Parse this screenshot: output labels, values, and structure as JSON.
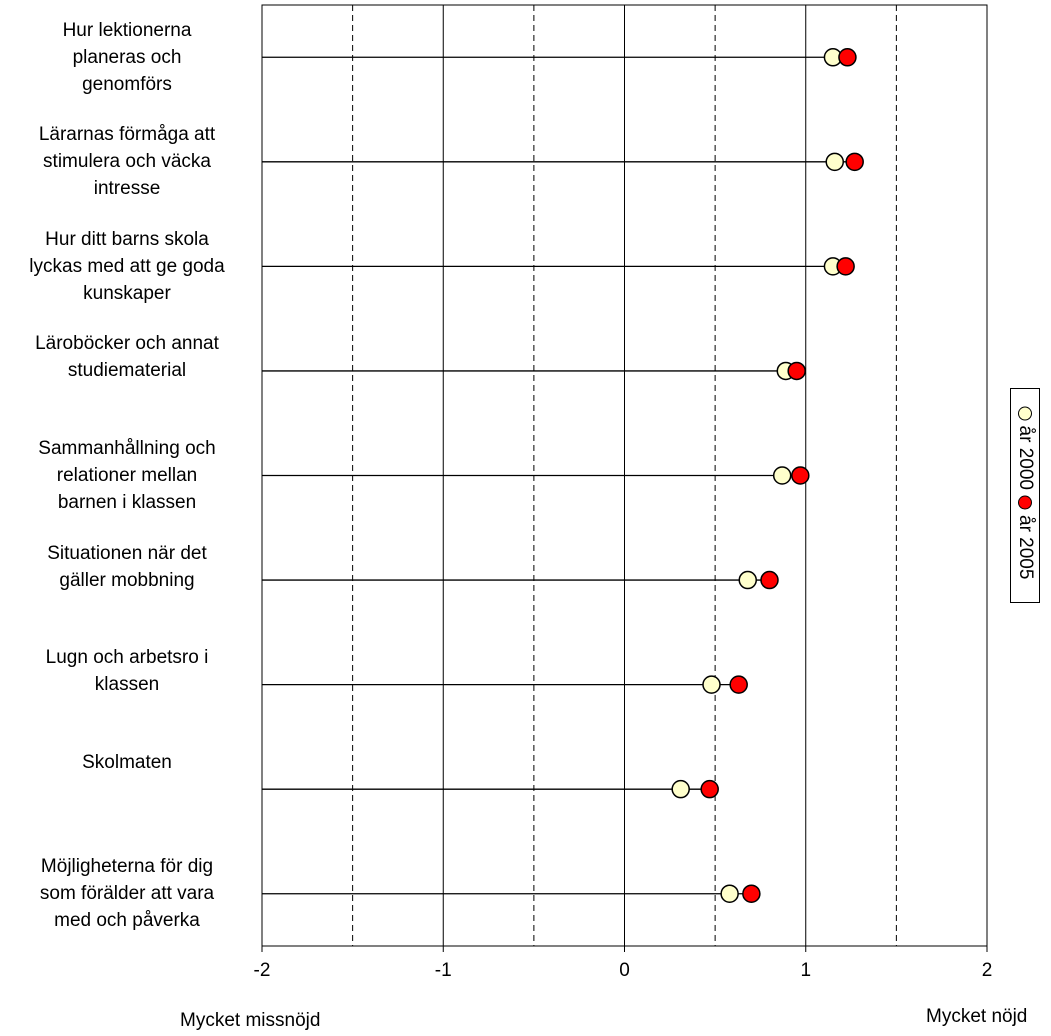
{
  "chart_data": {
    "type": "dot",
    "categories": [
      "Hur lektionerna planeras och genomförs",
      "Lärarnas förmåga att stimulera och väcka intresse",
      "Hur ditt barns skola lyckas med att ge goda kunskaper",
      "Läroböcker och annat studiematerial",
      "Sammanhållning och relationer mellan barnen i klassen",
      "Situationen när det gäller mobbning",
      "Lugn och arbetsro i klassen",
      "Skolmaten",
      "Möjligheterna för dig som förälder att vara med och påverka"
    ],
    "category_lines": [
      [
        "Hur lektionerna",
        "planeras och",
        "genomförs"
      ],
      [
        "Lärarnas förmåga att",
        "stimulera och väcka",
        "intresse"
      ],
      [
        "Hur ditt barns skola",
        "lyckas med att ge goda",
        "kunskaper"
      ],
      [
        "Läroböcker och annat",
        "studiematerial"
      ],
      [
        "Sammanhållning och",
        "relationer mellan",
        "barnen i klassen"
      ],
      [
        "Situationen när det",
        "gäller mobbning"
      ],
      [
        "Lugn och arbetsro i",
        "klassen"
      ],
      [
        "Skolmaten"
      ],
      [
        "Möjligheterna för dig",
        "som förälder att vara",
        "med och påverka"
      ]
    ],
    "series": [
      {
        "name": "år 2000",
        "color": "#FFFFCC",
        "values": [
          1.15,
          1.16,
          1.15,
          0.89,
          0.87,
          0.68,
          0.48,
          0.31,
          0.58
        ]
      },
      {
        "name": "år 2005",
        "color": "#FF0000",
        "values": [
          1.23,
          1.27,
          1.22,
          0.95,
          0.97,
          0.8,
          0.63,
          0.47,
          0.7
        ]
      }
    ],
    "xlim": [
      -2,
      2
    ],
    "xticks": [
      "-2",
      "-1",
      "0",
      "1",
      "2"
    ],
    "grid_solid": [
      -1,
      0,
      1
    ],
    "grid_dashed": [
      -1.5,
      -0.5,
      0.5,
      1.5
    ],
    "xlabel_left": "Mycket missnöjd",
    "xlabel_right": "Mycket nöjd",
    "legend_position": "right, rotated vertical"
  }
}
